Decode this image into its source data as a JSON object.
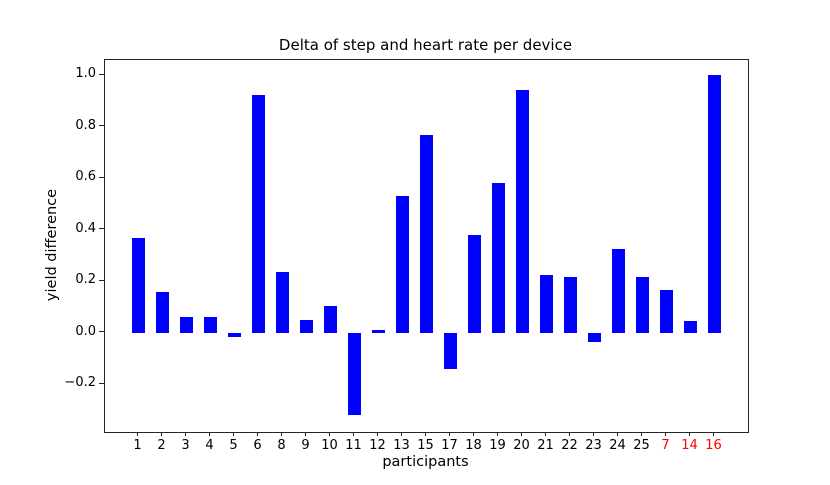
{
  "chart_data": {
    "type": "bar",
    "title": "Delta of step and heart rate per device",
    "xlabel": "participants",
    "ylabel": "yield difference",
    "categories": [
      "1",
      "2",
      "3",
      "4",
      "5",
      "6",
      "8",
      "9",
      "10",
      "11",
      "12",
      "13",
      "15",
      "17",
      "18",
      "19",
      "20",
      "21",
      "22",
      "23",
      "24",
      "25",
      "7",
      "14",
      "16"
    ],
    "values": [
      0.37,
      0.16,
      0.06,
      0.06,
      -0.015,
      0.925,
      0.235,
      0.05,
      0.105,
      -0.32,
      0.01,
      0.53,
      0.77,
      -0.14,
      0.38,
      0.58,
      0.945,
      0.225,
      0.215,
      -0.035,
      0.325,
      0.215,
      0.165,
      0.045,
      1.0
    ],
    "highlighted_categories": [
      "7",
      "14",
      "16"
    ],
    "y_tick_labels": [
      "1.0",
      "0.8",
      "0.6",
      "0.4",
      "0.2",
      "0.0",
      "−0.2"
    ],
    "y_tick_values": [
      1.0,
      0.8,
      0.6,
      0.4,
      0.2,
      0.0,
      -0.2
    ],
    "ylim": [
      -0.386,
      1.06
    ],
    "grid": false,
    "legend": null,
    "bar_color": "#0000ff",
    "tick_label_color": "#000000",
    "highlight_color": "#ff0000",
    "spine_color": "#262626"
  }
}
